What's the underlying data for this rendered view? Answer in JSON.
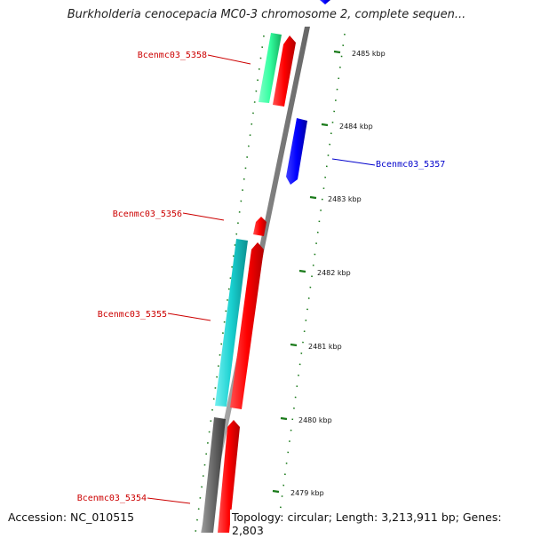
{
  "title": "Burkholderia cenocepacia MC0-3 chromosome 2, complete sequen...",
  "footer": {
    "accession": "Accession: NC_010515",
    "topology": "Topology: circular; Length: 3,213,911 bp; Genes: 2,803"
  },
  "colors": {
    "forward_cds": "#ff0000",
    "reverse_cds": "#0000ff",
    "backbone": "#999999",
    "tick_marks": "#1a7a1a",
    "label_forward": "#cc0000",
    "label_reverse": "#0000cc",
    "feature_green": "#33ffa0",
    "feature_cyan": "#19d0d0",
    "feature_gray": "#666666"
  },
  "ticks": [
    {
      "kbp": 2485,
      "label": "2485 kbp"
    },
    {
      "kbp": 2484,
      "label": "2484 kbp"
    },
    {
      "kbp": 2483,
      "label": "2483 kbp"
    },
    {
      "kbp": 2482,
      "label": "2482 kbp"
    },
    {
      "kbp": 2481,
      "label": "2481 kbp"
    },
    {
      "kbp": 2480,
      "label": "2480 kbp"
    },
    {
      "kbp": 2479,
      "label": "2479 kbp"
    }
  ],
  "genes": [
    {
      "id": "gene-5358",
      "label": "Bcenmc03_5358",
      "strand": "forward"
    },
    {
      "id": "gene-5357",
      "label": "Bcenmc03_5357",
      "strand": "reverse"
    },
    {
      "id": "gene-5356",
      "label": "Bcenmc03_5356",
      "strand": "forward"
    },
    {
      "id": "gene-5355",
      "label": "Bcenmc03_5355",
      "strand": "forward"
    },
    {
      "id": "gene-5354",
      "label": "Bcenmc03_5354",
      "strand": "forward"
    }
  ]
}
